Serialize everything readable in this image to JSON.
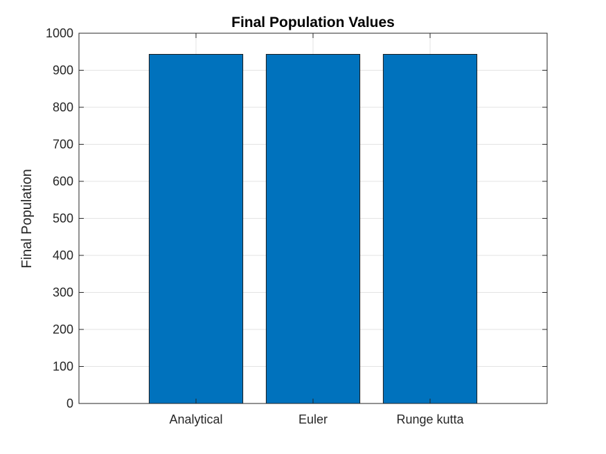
{
  "chart_data": {
    "type": "bar",
    "title": "Final Population Values",
    "xlabel": "",
    "ylabel": "Final Population",
    "categories": [
      "Analytical",
      "Euler",
      "Runge kutta"
    ],
    "values": [
      943,
      943,
      943
    ],
    "ylim": [
      0,
      1000
    ],
    "yticks": [
      "0",
      "100",
      "200",
      "300",
      "400",
      "500",
      "600",
      "700",
      "800",
      "900",
      "1000"
    ],
    "grid": true,
    "bar_color": "#0072BD"
  }
}
